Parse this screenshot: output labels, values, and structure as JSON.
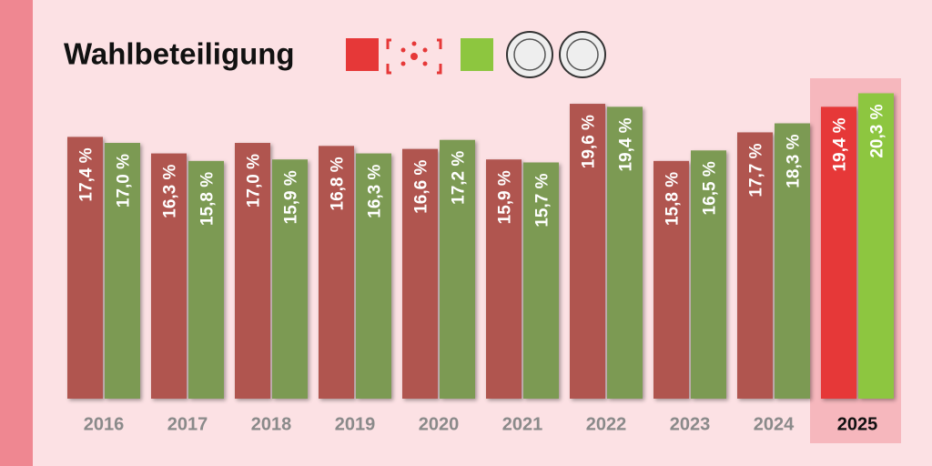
{
  "chart_data": {
    "type": "bar",
    "title": "Wahlbeteiligung",
    "categories": [
      "2016",
      "2017",
      "2018",
      "2019",
      "2020",
      "2021",
      "2022",
      "2023",
      "2024",
      "2025"
    ],
    "series": [
      {
        "color": "#b05450",
        "highlight_color": "#e63838",
        "values": [
          17.4,
          16.3,
          17.0,
          16.8,
          16.6,
          15.9,
          19.6,
          15.8,
          17.7,
          19.4
        ],
        "value_labels": [
          "17,4 %",
          "16,3 %",
          "17,0 %",
          "16,8 %",
          "16,6 %",
          "15,9 %",
          "19,6 %",
          "15,8 %",
          "17,7 %",
          "19,4 %"
        ]
      },
      {
        "color": "#7b9a52",
        "highlight_color": "#8dc63f",
        "values": [
          17.0,
          15.8,
          15.9,
          16.3,
          17.2,
          15.7,
          19.4,
          16.5,
          18.3,
          20.3
        ],
        "value_labels": [
          "17,0 %",
          "15,8 %",
          "15,9 %",
          "16,3 %",
          "17,2 %",
          "15,7 %",
          "19,4 %",
          "16,5 %",
          "18,3 %",
          "20,3 %"
        ]
      }
    ],
    "highlight_index": 9,
    "ylim": [
      0,
      26.5
    ]
  }
}
